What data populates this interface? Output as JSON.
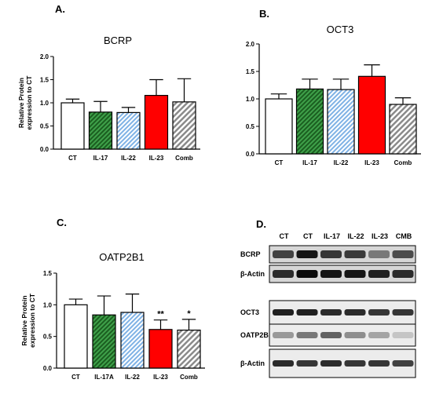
{
  "colors": {
    "CT": "#ffffff",
    "IL-17": "#2e7d32",
    "IL-22": "#7fb2e5",
    "IL-23": "#ff0000",
    "Comb": "#a0a0a0"
  },
  "chart_data": [
    {
      "panel": "A.",
      "type": "bar",
      "title": "BCRP",
      "ylabel": "Relative Protein expression to CT",
      "ylim": [
        0,
        2.0
      ],
      "yticks": [
        "0.0",
        "0.5",
        "1.0",
        "1.5",
        "2.0"
      ],
      "categories": [
        "CT",
        "IL-17",
        "IL-22",
        "IL-23",
        "Comb"
      ],
      "values": [
        1.0,
        0.8,
        0.79,
        1.16,
        1.02
      ],
      "errors": [
        0.08,
        0.23,
        0.11,
        0.34,
        0.5
      ],
      "significance": [
        "",
        "",
        "",
        "",
        ""
      ]
    },
    {
      "panel": "B.",
      "type": "bar",
      "title": "OCT3",
      "ylabel": "",
      "ylim": [
        0,
        2.0
      ],
      "yticks": [
        "0.0",
        "0.5",
        "1.0",
        "1.5",
        "2.0"
      ],
      "categories": [
        "CT",
        "IL-17",
        "IL-22",
        "IL-23",
        "Comb"
      ],
      "values": [
        1.0,
        1.18,
        1.17,
        1.41,
        0.9
      ],
      "errors": [
        0.09,
        0.18,
        0.19,
        0.21,
        0.12
      ],
      "significance": [
        "",
        "",
        "",
        "",
        ""
      ]
    },
    {
      "panel": "C.",
      "type": "bar",
      "title": "OATP2B1",
      "ylabel": "Relative Protein expression to CT",
      "ylim": [
        0,
        1.5
      ],
      "yticks": [
        "0.0",
        "0.5",
        "1.0",
        "1.5"
      ],
      "categories": [
        "CT",
        "IL-17A",
        "IL-22",
        "IL-23",
        "Comb"
      ],
      "values": [
        1.0,
        0.84,
        0.88,
        0.61,
        0.6
      ],
      "errors": [
        0.09,
        0.3,
        0.29,
        0.15,
        0.17
      ],
      "significance": [
        "",
        "",
        "",
        "**",
        "*"
      ]
    }
  ],
  "blot": {
    "panel": "D.",
    "lanes": [
      "CT",
      "CT",
      "IL-17",
      "IL-22",
      "IL-23",
      "CMB"
    ],
    "rows": [
      {
        "label": "BCRP",
        "intensity": [
          0.75,
          0.95,
          0.8,
          0.78,
          0.5,
          0.7
        ]
      },
      {
        "label": "β-Actin",
        "intensity": [
          0.85,
          1.0,
          0.95,
          0.95,
          0.9,
          0.85
        ]
      },
      {
        "label": "OCT3",
        "intensity": [
          0.9,
          0.9,
          0.85,
          0.85,
          0.8,
          0.8
        ]
      },
      {
        "label": "OATP2B1",
        "intensity": [
          0.35,
          0.5,
          0.6,
          0.4,
          0.3,
          0.15
        ]
      },
      {
        "label": "β-Actin",
        "intensity": [
          0.85,
          0.8,
          0.85,
          0.8,
          0.8,
          0.75
        ]
      }
    ]
  }
}
